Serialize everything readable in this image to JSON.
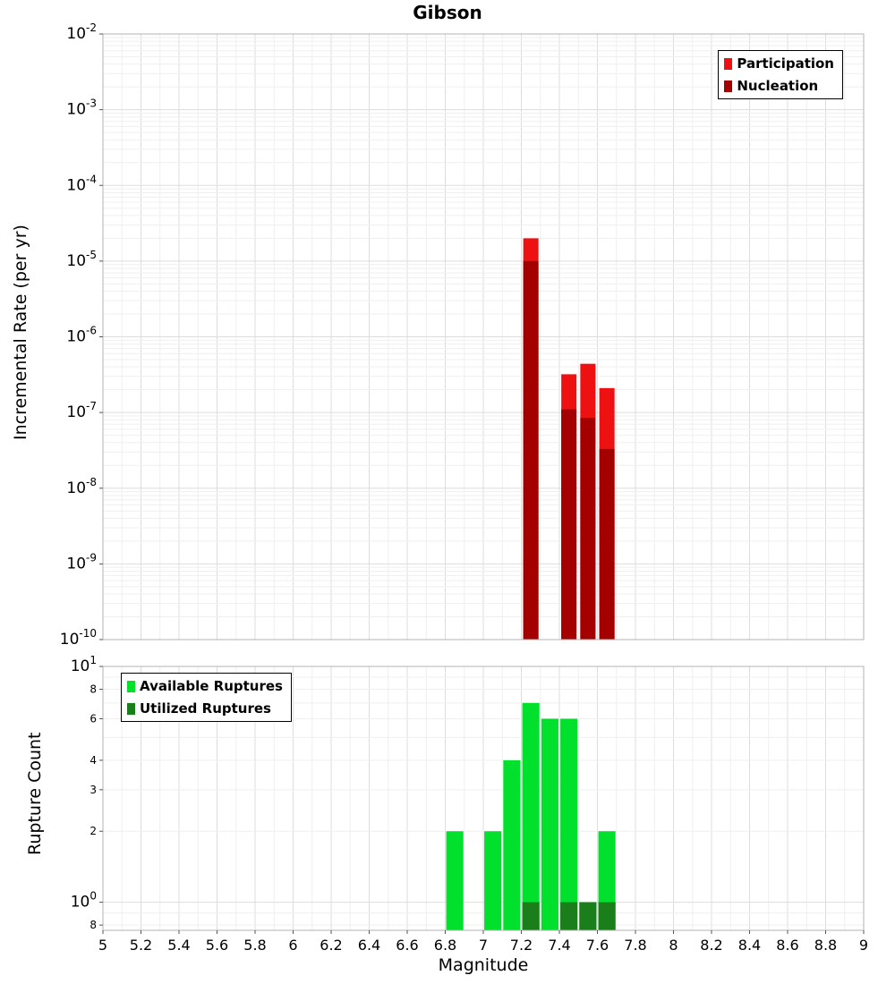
{
  "title": "Gibson",
  "xlabel": "Magnitude",
  "colors": {
    "participation": "#ee1111",
    "nucleation": "#a40000",
    "available": "#00e02c",
    "utilized": "#1a7e1a",
    "grid_major": "#dddddd",
    "grid_minor": "#efefef",
    "plot_border": "#b3b3b3",
    "tick": "#555555"
  },
  "xticks": [
    {
      "v": 5,
      "label": "5"
    },
    {
      "v": 5.2,
      "label": "5.2"
    },
    {
      "v": 5.4,
      "label": "5.4"
    },
    {
      "v": 5.6,
      "label": "5.6"
    },
    {
      "v": 5.8,
      "label": "5.8"
    },
    {
      "v": 6,
      "label": "6"
    },
    {
      "v": 6.2,
      "label": "6.2"
    },
    {
      "v": 6.4,
      "label": "6.4"
    },
    {
      "v": 6.6,
      "label": "6.6"
    },
    {
      "v": 6.8,
      "label": "6.8"
    },
    {
      "v": 7,
      "label": "7"
    },
    {
      "v": 7.2,
      "label": "7.2"
    },
    {
      "v": 7.4,
      "label": "7.4"
    },
    {
      "v": 7.6,
      "label": "7.6"
    },
    {
      "v": 7.8,
      "label": "7.8"
    },
    {
      "v": 8,
      "label": "8"
    },
    {
      "v": 8.2,
      "label": "8.2"
    },
    {
      "v": 8.4,
      "label": "8.4"
    },
    {
      "v": 8.6,
      "label": "8.6"
    },
    {
      "v": 8.8,
      "label": "8.8"
    },
    {
      "v": 9,
      "label": "9"
    }
  ],
  "chart_data": [
    {
      "type": "bar",
      "name": "incremental-rate",
      "title": "Gibson",
      "ylabel": "Incremental Rate (per yr)",
      "yscale": "log",
      "grid": true,
      "xlim": [
        5,
        9
      ],
      "ylim": [
        1e-10,
        0.01
      ],
      "legend_position": "top-right",
      "legend": [
        {
          "label": "Participation",
          "color": "#ee1111"
        },
        {
          "label": "Nucleation",
          "color": "#a40000"
        }
      ],
      "yticks": [
        {
          "v": 0.01,
          "exp": "-2"
        },
        {
          "v": 0.001,
          "exp": "-3"
        },
        {
          "v": 0.0001,
          "exp": "-4"
        },
        {
          "v": 1e-05,
          "exp": "-5"
        },
        {
          "v": 1e-06,
          "exp": "-6"
        },
        {
          "v": 1e-07,
          "exp": "-7"
        },
        {
          "v": 1e-08,
          "exp": "-8"
        },
        {
          "v": 1e-09,
          "exp": "-9"
        },
        {
          "v": 1e-10,
          "exp": "-10"
        }
      ],
      "series": [
        {
          "name": "Participation",
          "color": "#ee1111",
          "points": [
            {
              "x": 7.25,
              "y": 2e-05
            },
            {
              "x": 7.45,
              "y": 3.2e-07
            },
            {
              "x": 7.55,
              "y": 4.4e-07
            },
            {
              "x": 7.65,
              "y": 2.1e-07
            }
          ]
        },
        {
          "name": "Nucleation",
          "color": "#a40000",
          "points": [
            {
              "x": 7.25,
              "y": 1e-05
            },
            {
              "x": 7.45,
              "y": 1.1e-07
            },
            {
              "x": 7.55,
              "y": 8.5e-08
            },
            {
              "x": 7.65,
              "y": 3.3e-08
            }
          ]
        }
      ]
    },
    {
      "type": "bar",
      "name": "rupture-count",
      "ylabel": "Rupture Count",
      "yscale": "log",
      "grid": true,
      "xlim": [
        5,
        9
      ],
      "ylim": [
        0.76,
        10
      ],
      "legend_position": "top-left",
      "legend": [
        {
          "label": "Available Ruptures",
          "color": "#00e02c"
        },
        {
          "label": "Utilized Ruptures",
          "color": "#1a7e1a"
        }
      ],
      "yticks": [
        {
          "v": 10,
          "exp": "1"
        },
        {
          "v": 8,
          "label": "8"
        },
        {
          "v": 6,
          "label": "6"
        },
        {
          "v": 4,
          "label": "4"
        },
        {
          "v": 3,
          "label": "3"
        },
        {
          "v": 2,
          "label": "2"
        },
        {
          "v": 1,
          "exp": "0"
        },
        {
          "v": 0.8,
          "label": "8"
        }
      ],
      "series": [
        {
          "name": "Available Ruptures",
          "color": "#00e02c",
          "points": [
            {
              "x": 6.85,
              "y": 2
            },
            {
              "x": 7.05,
              "y": 2
            },
            {
              "x": 7.15,
              "y": 4
            },
            {
              "x": 7.25,
              "y": 7
            },
            {
              "x": 7.35,
              "y": 6
            },
            {
              "x": 7.45,
              "y": 6
            },
            {
              "x": 7.55,
              "y": 1
            },
            {
              "x": 7.65,
              "y": 2
            }
          ]
        },
        {
          "name": "Utilized Ruptures",
          "color": "#1a7e1a",
          "points": [
            {
              "x": 7.25,
              "y": 1
            },
            {
              "x": 7.45,
              "y": 1
            },
            {
              "x": 7.55,
              "y": 1
            },
            {
              "x": 7.65,
              "y": 1
            }
          ]
        }
      ]
    }
  ]
}
